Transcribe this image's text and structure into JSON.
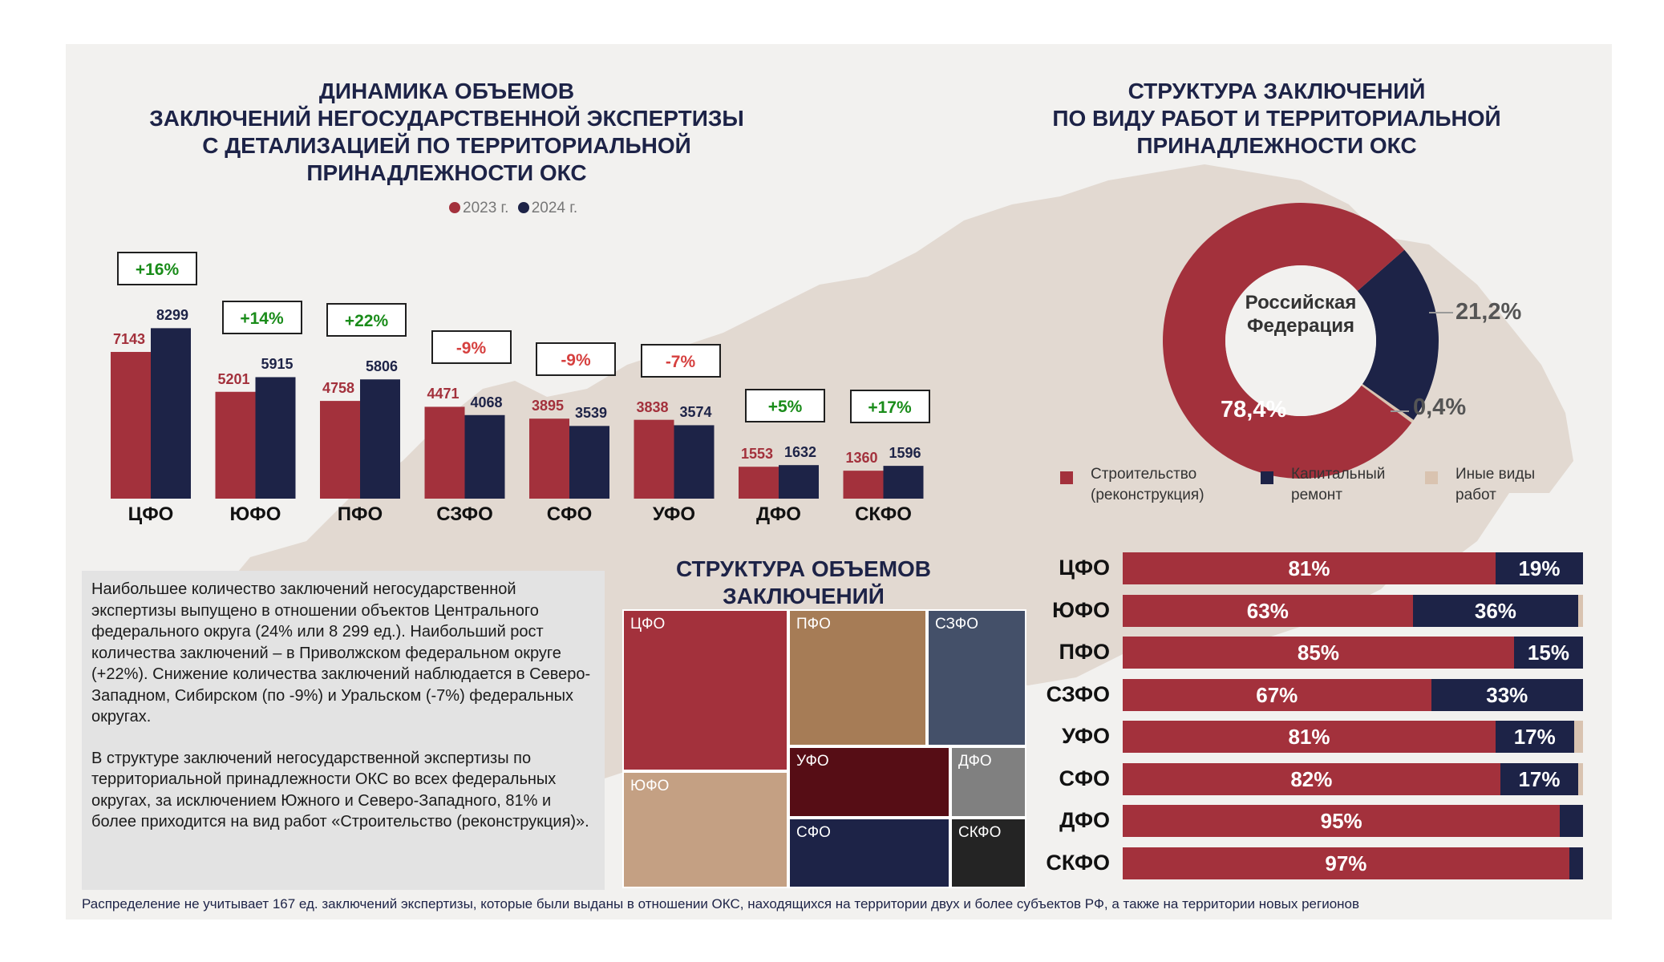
{
  "left_chart": {
    "title_lines": [
      "ДИНАМИКА ОБЪЕМОВ",
      "ЗАКЛЮЧЕНИЙ НЕГОСУДАРСТВЕННОЙ ЭКСПЕРТИЗЫ",
      "С ДЕТАЛИЗАЦИЕЙ ПО ТЕРРИТОРИАЛЬНОЙ",
      "ПРИНАДЛЕЖНОСТИ ОКС"
    ],
    "legend": [
      "2023 г.",
      "2024 г."
    ]
  },
  "right_chart": {
    "title_lines": [
      "СТРУКТУРА ЗАКЛЮЧЕНИЙ",
      "ПО ВИДУ РАБОТ И ТЕРРИТОРИАЛЬНОЙ",
      "ПРИНАДЛЕЖНОСТИ ОКС"
    ],
    "center_label_lines": [
      "Российская",
      "Федерация"
    ],
    "legend": [
      {
        "lines": [
          "Строительство",
          "(реконструкция)"
        ],
        "color": "#a3313c"
      },
      {
        "lines": [
          "Капитальный",
          "ремонт"
        ],
        "color": "#1d2347"
      },
      {
        "lines": [
          "Иные виды",
          "работ"
        ],
        "color": "#d9c3b0"
      }
    ]
  },
  "treemap": {
    "title_lines": [
      "СТРУКТУРА ОБЪЕМОВ",
      "ЗАКЛЮЧЕНИЙ"
    ],
    "cells": [
      {
        "label": "ЦФО",
        "color": "#a3313c"
      },
      {
        "label": "ЮФО",
        "color": "#c4a083"
      },
      {
        "label": "ПФО",
        "color": "#a67c56"
      },
      {
        "label": "СЗФО",
        "color": "#445069"
      },
      {
        "label": "УФО",
        "color": "#560d15"
      },
      {
        "label": "ДФО",
        "color": "#808080"
      },
      {
        "label": "СФО",
        "color": "#1d2347"
      },
      {
        "label": "СКФО",
        "color": "#242424"
      }
    ]
  },
  "note": {
    "paragraphs": [
      "Наибольшее количество заключений негосударственной экспертизы выпущено в отношении объектов Центрального федерального округа (24% или 8 299 ед.). Наибольший рост количества заключений – в Приволжском федеральном округе (+22%). Снижение количества заключений наблюдается в Северо-Западном, Сибирском (по -9%) и Уральском (-7%) федеральных округах.",
      "В структуре заключений негосударственной экспертизы по территориальной принадлежности ОКС во всех федеральных округах, за исключением Южного и Северо-Западного, 81% и более приходится на вид работ «Строительство (реконструкция)»."
    ]
  },
  "footer": "Распределение не учитывает 167 ед. заключений экспертизы, которые были выданы в отношении ОКС, находящихся на территории двух и более субъектов РФ, а также на территории новых регионов",
  "chart_data": [
    {
      "type": "bar",
      "categories": [
        "ЦФО",
        "ЮФО",
        "ПФО",
        "СЗФО",
        "СФО",
        "УФО",
        "ДФО",
        "СКФО"
      ],
      "series": [
        {
          "name": "2023 г.",
          "color": "#a3313c",
          "values": [
            7143,
            5201,
            4758,
            4471,
            3895,
            3838,
            1553,
            1360
          ]
        },
        {
          "name": "2024 г.",
          "color": "#1d2347",
          "values": [
            8299,
            5915,
            5806,
            4068,
            3539,
            3574,
            1632,
            1596
          ]
        }
      ],
      "changes": [
        "+16%",
        "+14%",
        "+22%",
        "-9%",
        "-9%",
        "-7%",
        "+5%",
        "+17%"
      ],
      "ylim": [
        0,
        8500
      ]
    },
    {
      "type": "pie",
      "labels": [
        "Строительство (реконструкция)",
        "Капитальный ремонт",
        "Иные виды работ"
      ],
      "values": [
        78.4,
        21.2,
        0.4
      ],
      "value_labels": [
        "78,4%",
        "21,2%",
        "0,4%"
      ],
      "colors": [
        "#a3313c",
        "#1d2347",
        "#d9c3b0"
      ]
    },
    {
      "type": "bar",
      "orientation": "horizontal-stacked",
      "categories": [
        "ЦФО",
        "ЮФО",
        "ПФО",
        "СЗФО",
        "УФО",
        "СФО",
        "ДФО",
        "СКФО"
      ],
      "series": [
        {
          "name": "Строительство (реконструкция)",
          "color": "#a3313c",
          "values": [
            81,
            63,
            85,
            67,
            81,
            82,
            95,
            97
          ]
        },
        {
          "name": "Капитальный ремонт",
          "color": "#1d2347",
          "values": [
            19,
            36,
            15,
            33,
            17,
            17,
            5,
            3
          ]
        },
        {
          "name": "Иные виды работ",
          "color": "#d9c3b0",
          "values": [
            0,
            1,
            0,
            0,
            2,
            1,
            0,
            0
          ]
        }
      ],
      "labels_shown": [
        [
          "81%",
          "19%",
          ""
        ],
        [
          "63%",
          "36%",
          ""
        ],
        [
          "85%",
          "15%",
          ""
        ],
        [
          "67%",
          "33%",
          ""
        ],
        [
          "81%",
          "17%",
          ""
        ],
        [
          "82%",
          "17%",
          ""
        ],
        [
          "95%",
          "",
          ""
        ],
        [
          "97%",
          "",
          ""
        ]
      ]
    },
    {
      "type": "treemap",
      "labels": [
        "ЦФО",
        "ЮФО",
        "ПФО",
        "СЗФО",
        "УФО",
        "ДФО",
        "СФО",
        "СКФО"
      ],
      "values": [
        8299,
        5915,
        5806,
        4068,
        3574,
        1632,
        3539,
        1596
      ]
    }
  ]
}
